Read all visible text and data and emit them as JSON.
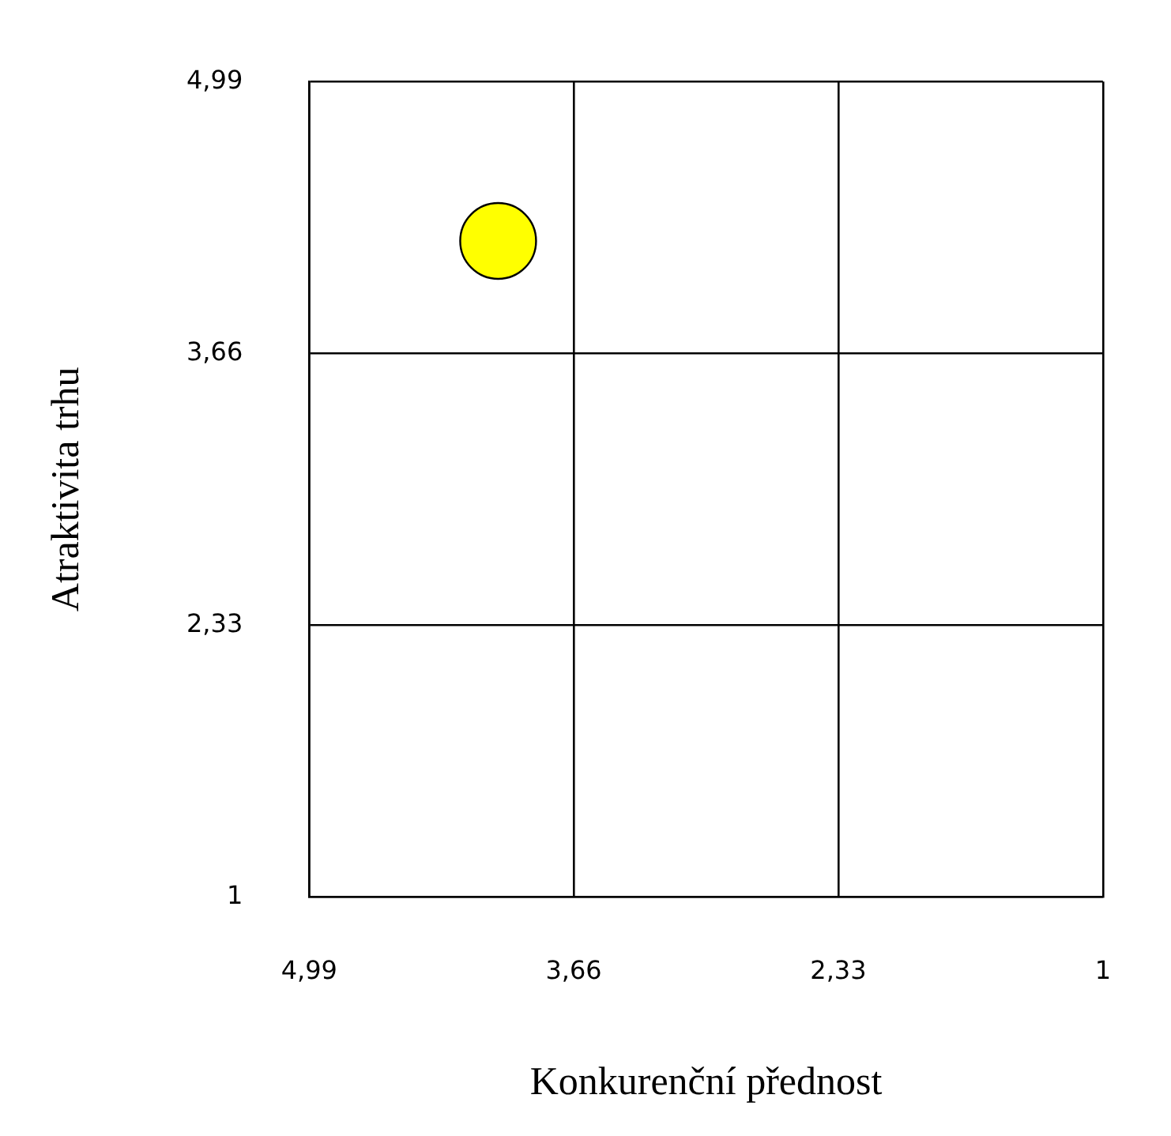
{
  "chart_data": {
    "type": "scatter",
    "xlabel": "Konkurenční přednost",
    "ylabel": "Atraktivita trhu",
    "x": [
      4.04
    ],
    "values": [
      4.21
    ],
    "color": "#ffff00",
    "marker": "circle",
    "xlim": [
      4.99,
      1
    ],
    "ylim": [
      1,
      4.99
    ],
    "xticks": [
      {
        "value": 4.99,
        "label": "4,99"
      },
      {
        "value": 3.66,
        "label": "3,66"
      },
      {
        "value": 2.33,
        "label": "2,33"
      },
      1
    ],
    "yticks": [
      1,
      {
        "value": 2.33,
        "label": "2,33"
      },
      {
        "value": 3.66,
        "label": "3,66"
      },
      {
        "value": 4.99,
        "label": "4,99"
      }
    ],
    "grid": true,
    "legend": false
  }
}
